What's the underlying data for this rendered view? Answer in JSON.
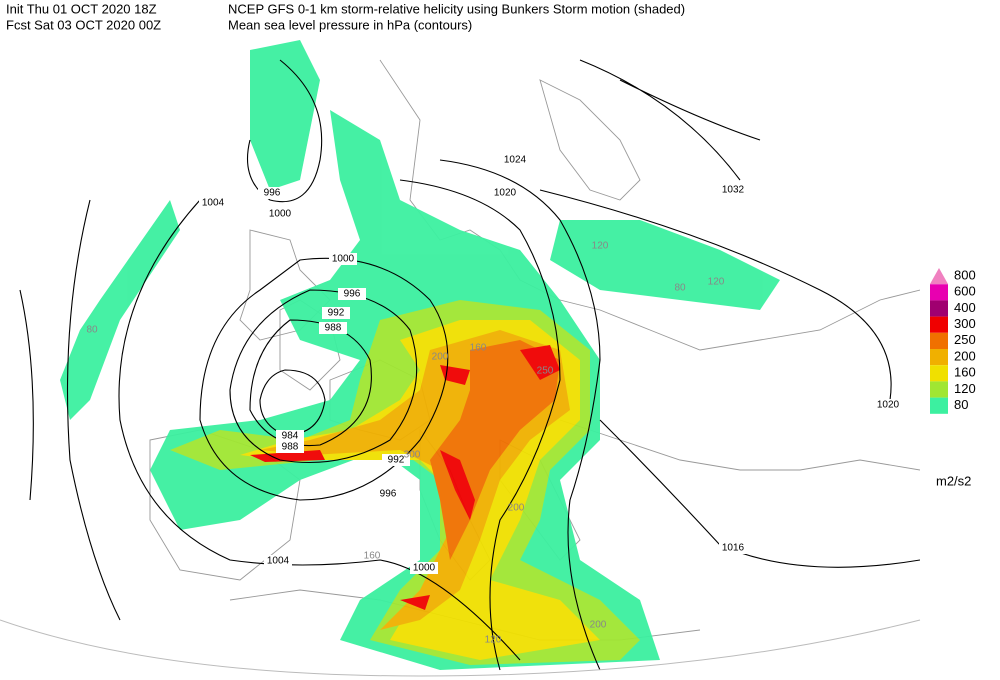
{
  "header": {
    "init": "Init  Thu 01 OCT 2020 18Z",
    "fcst": "Fcst Sat 03 OCT 2020 00Z",
    "title": "NCEP GFS 0-1 km storm-relative helicity using Bunkers Storm motion (shaded)",
    "subtitle": "Mean sea level pressure in hPa (contours)"
  },
  "legend": {
    "levels": [
      800,
      600,
      400,
      300,
      250,
      200,
      160,
      120,
      80
    ],
    "colors": [
      "#f080c0",
      "#e800b0",
      "#a00070",
      "#f00000",
      "#f07000",
      "#f0b000",
      "#f0e000",
      "#a0e632",
      "#3cf0a0"
    ],
    "unit": "m2/s2"
  },
  "isobar_labels": [
    "1032",
    "1024",
    "1020",
    "1020",
    "1016",
    "1004",
    "1004",
    "1000",
    "1000",
    "1000",
    "996",
    "996",
    "996",
    "992",
    "992",
    "988",
    "984",
    "988"
  ],
  "helicity_labels": [
    "80",
    "80",
    "120",
    "120",
    "160",
    "200",
    "200",
    "250",
    "300",
    "200",
    "120",
    "160"
  ]
}
